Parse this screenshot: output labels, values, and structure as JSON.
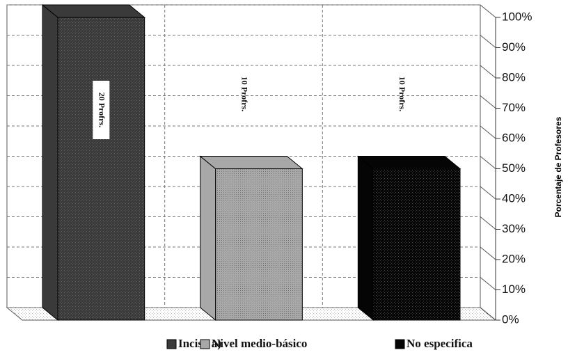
{
  "chart_data": {
    "type": "bar3d",
    "y_axis_label": "Porcentaje de Profesores",
    "categories": [
      "Inciso a)",
      "Nivel medio-básico",
      "No especifica"
    ],
    "values": [
      100,
      50,
      50
    ],
    "colors": [
      "#3a3a3a",
      "#a8a8a8",
      "#050505"
    ],
    "annotations": [
      "20 Profrs.",
      "10 Profrs.",
      "10 Profrs."
    ],
    "ylim": [
      0,
      100
    ],
    "yticks": [
      {
        "value": 0,
        "label": "0%"
      },
      {
        "value": 10,
        "label": "10%"
      },
      {
        "value": 20,
        "label": "20%"
      },
      {
        "value": 30,
        "label": "30%"
      },
      {
        "value": 40,
        "label": "40%"
      },
      {
        "value": 50,
        "label": "50%"
      },
      {
        "value": 60,
        "label": "60%"
      },
      {
        "value": 70,
        "label": "70%"
      },
      {
        "value": 80,
        "label": "80%"
      },
      {
        "value": 90,
        "label": "90%"
      },
      {
        "value": 100,
        "label": "100%"
      }
    ],
    "grid": true
  }
}
